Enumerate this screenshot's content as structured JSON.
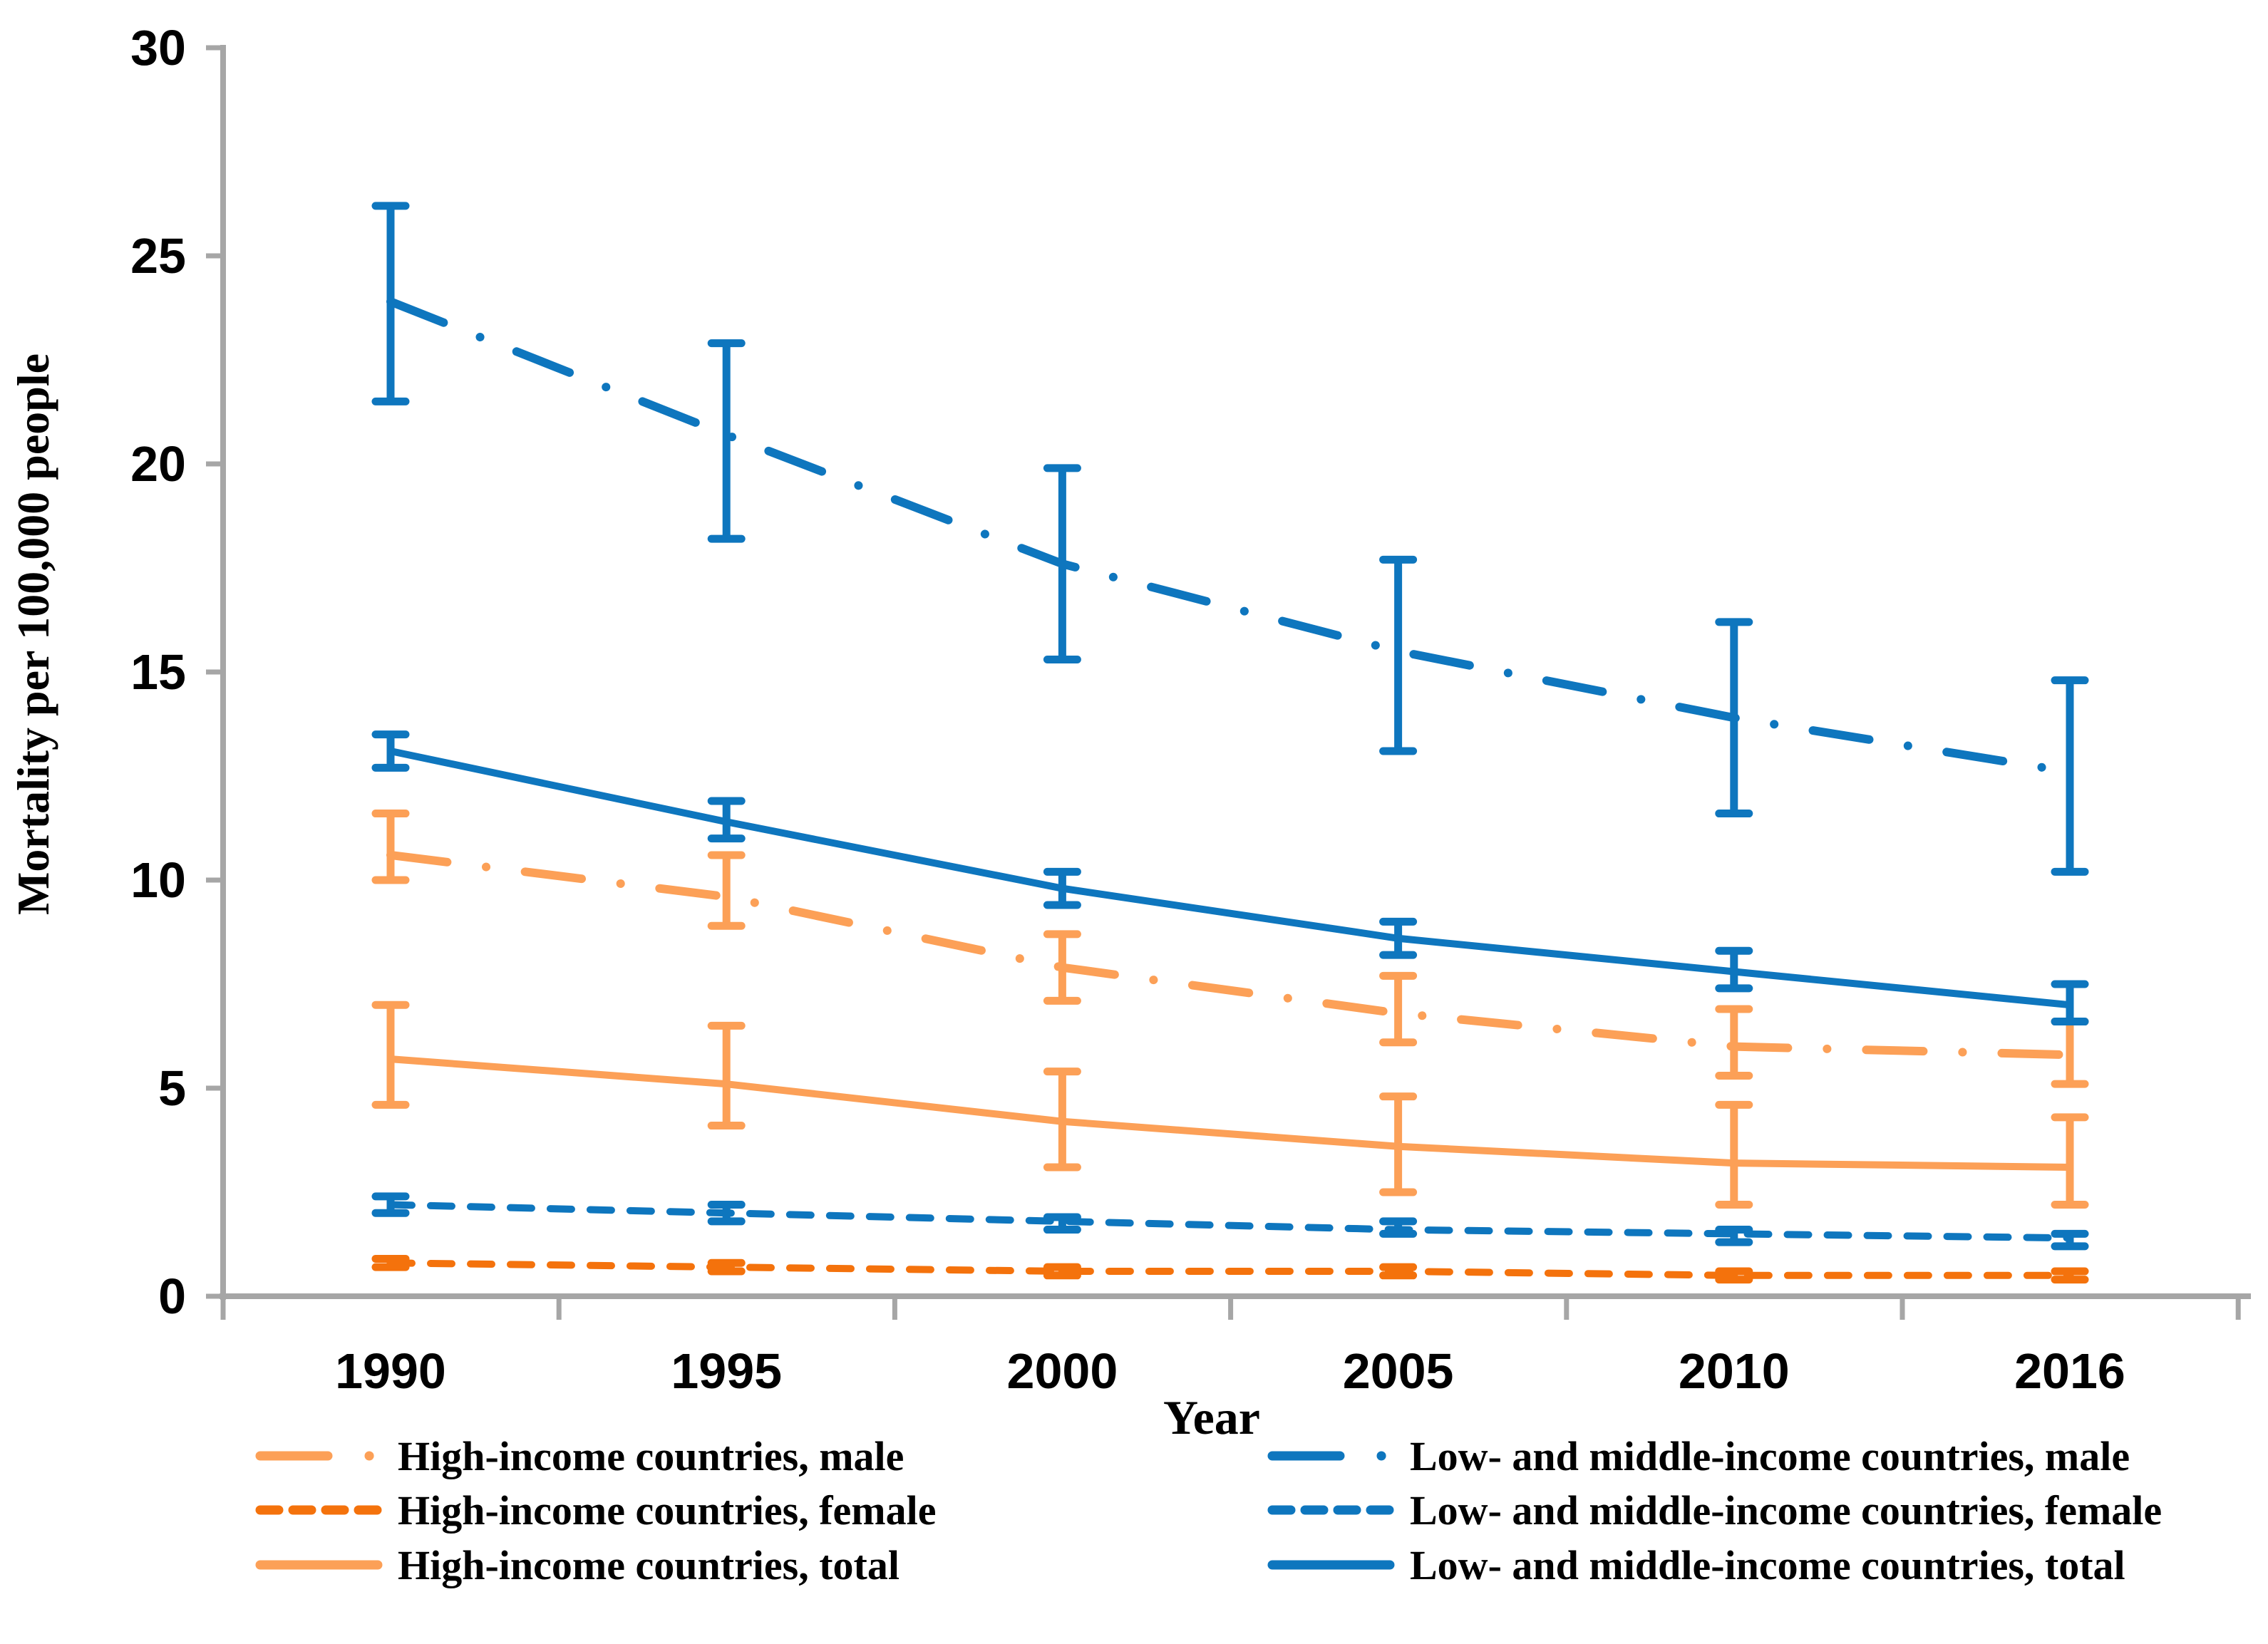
{
  "figure": {
    "background": "#FFFFFF",
    "axis_color": "#A6A6A6",
    "text_color": "#000000"
  },
  "chart_data": {
    "type": "line",
    "title": "",
    "xlabel": "Year",
    "ylabel": "Mortality per 100,000 people",
    "categories": [
      "1990",
      "1995",
      "2000",
      "2005",
      "2010",
      "2016"
    ],
    "ylim": [
      0,
      30
    ],
    "yticks": [
      "0",
      "5",
      "10",
      "15",
      "20",
      "25",
      "30"
    ],
    "grid": false,
    "error_bars": true,
    "legend_position": "bottom, two columns",
    "colors": {
      "blue": "#0E76BE",
      "orange_light": "#FCA057",
      "orange_dark": "#F4720C",
      "axis_gray": "#A6A6A6"
    },
    "series": [
      {
        "name": "High-income countries, male",
        "color": "#FCA057",
        "line_style": "dashdot",
        "values": [
          10.6,
          9.6,
          7.9,
          6.8,
          6.0,
          5.8
        ],
        "ci_low": [
          10.0,
          8.9,
          7.1,
          6.1,
          5.3,
          5.1
        ],
        "ci_high": [
          11.6,
          10.6,
          8.7,
          7.7,
          6.9,
          6.6
        ]
      },
      {
        "name": "High-income countries, female",
        "color": "#F4720C",
        "line_style": "dashed",
        "values": [
          0.8,
          0.7,
          0.6,
          0.6,
          0.5,
          0.5
        ],
        "ci_low": [
          0.7,
          0.6,
          0.5,
          0.5,
          0.4,
          0.4
        ],
        "ci_high": [
          0.9,
          0.8,
          0.7,
          0.7,
          0.6,
          0.6
        ]
      },
      {
        "name": "High-income countries, total",
        "color": "#FCA057",
        "line_style": "solid",
        "values": [
          5.7,
          5.1,
          4.2,
          3.6,
          3.2,
          3.1
        ],
        "ci_low": [
          4.6,
          4.1,
          3.1,
          2.5,
          2.2,
          2.2
        ],
        "ci_high": [
          7.0,
          6.5,
          5.4,
          4.8,
          4.6,
          4.3
        ]
      },
      {
        "name": "Low- and middle-income countries, male",
        "color": "#0E76BE",
        "line_style": "dashdot",
        "values": [
          23.9,
          20.7,
          17.6,
          15.5,
          13.9,
          12.6
        ],
        "ci_low": [
          21.5,
          18.2,
          15.3,
          13.1,
          11.6,
          10.2
        ],
        "ci_high": [
          26.2,
          22.9,
          19.9,
          17.7,
          16.2,
          14.8
        ]
      },
      {
        "name": "Low- and middle-income countries, female",
        "color": "#0E76BE",
        "line_style": "dashed",
        "values": [
          2.2,
          2.0,
          1.8,
          1.6,
          1.5,
          1.4
        ],
        "ci_low": [
          2.0,
          1.8,
          1.6,
          1.5,
          1.3,
          1.2
        ],
        "ci_high": [
          2.4,
          2.2,
          1.9,
          1.8,
          1.6,
          1.5
        ]
      },
      {
        "name": "Low- and middle-income countries, total",
        "color": "#0E76BE",
        "line_style": "solid",
        "values": [
          13.1,
          11.4,
          9.8,
          8.6,
          7.8,
          7.0
        ],
        "ci_low": [
          12.7,
          11.0,
          9.4,
          8.2,
          7.4,
          6.6
        ],
        "ci_high": [
          13.5,
          11.9,
          10.2,
          9.0,
          8.3,
          7.5
        ]
      }
    ],
    "legend_columns": [
      [
        "High-income countries, male",
        "High-income countries, female",
        "High-income countries, total"
      ],
      [
        "Low- and middle-income countries, male",
        "Low- and middle-income countries, female",
        "Low- and middle-income countries, total"
      ]
    ]
  }
}
